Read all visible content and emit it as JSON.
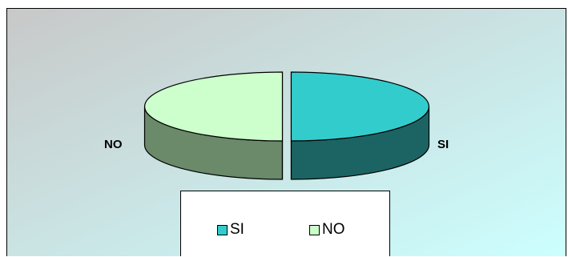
{
  "chart_data": {
    "type": "pie",
    "style": "3d",
    "categories": [
      "SI",
      "NO"
    ],
    "values": [
      50,
      50
    ],
    "colors": {
      "SI": {
        "top": "#33CCCC",
        "side": "#1C6464"
      },
      "NO": {
        "top": "#CCFFCC",
        "side": "#6A8A6A"
      }
    },
    "data_labels": [
      "SI",
      "NO"
    ],
    "legend": {
      "position": "bottom",
      "entries": [
        "SI",
        "NO"
      ]
    },
    "background_gradient": [
      "#C8C8C8",
      "#CCFFFF"
    ]
  }
}
